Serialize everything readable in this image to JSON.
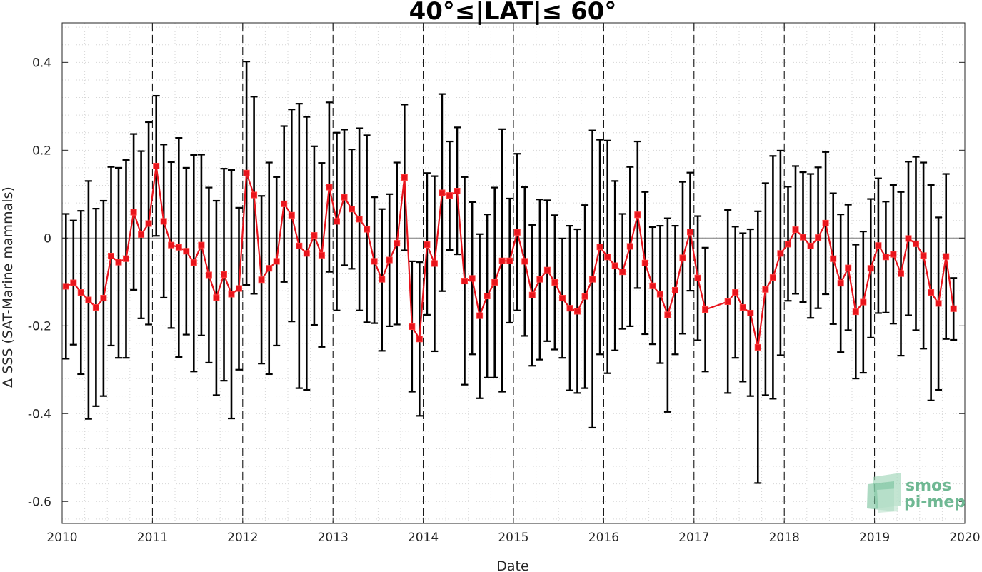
{
  "chart_data": {
    "type": "line",
    "title": "40°≤|LAT|≤ 60°",
    "xlabel": "Date",
    "ylabel": "Δ SSS (SAT-Marine mammals)",
    "xlim": [
      2010,
      2020
    ],
    "ylim": [
      -0.65,
      0.49
    ],
    "xticks": [
      "2010",
      "2011",
      "2012",
      "2013",
      "2014",
      "2015",
      "2016",
      "2017",
      "2018",
      "2019",
      "2020"
    ],
    "yticks": [
      0.4,
      0.2,
      0,
      -0.2,
      -0.4,
      -0.6
    ],
    "ytick_labels": [
      "0.4",
      "0.2",
      "0",
      "-0.2",
      "-0.4",
      "-0.6"
    ],
    "year_marker_lines": [
      2011,
      2012,
      2013,
      2014,
      2015,
      2016,
      2017,
      2018,
      2019
    ],
    "grid": true,
    "series": [
      {
        "color": "#e8141c",
        "errorbar_color": "#000000",
        "points": [
          {
            "x": 2010.042,
            "y": -0.11,
            "lo": -0.275,
            "hi": 0.055
          },
          {
            "x": 2010.125,
            "y": -0.102,
            "lo": -0.243,
            "hi": 0.04
          },
          {
            "x": 2010.208,
            "y": -0.124,
            "lo": -0.31,
            "hi": 0.062
          },
          {
            "x": 2010.292,
            "y": -0.141,
            "lo": -0.412,
            "hi": 0.13
          },
          {
            "x": 2010.375,
            "y": -0.158,
            "lo": -0.383,
            "hi": 0.067
          },
          {
            "x": 2010.458,
            "y": -0.137,
            "lo": -0.36,
            "hi": 0.085
          },
          {
            "x": 2010.542,
            "y": -0.041,
            "lo": -0.245,
            "hi": 0.162
          },
          {
            "x": 2010.625,
            "y": -0.055,
            "lo": -0.273,
            "hi": 0.16
          },
          {
            "x": 2010.708,
            "y": -0.047,
            "lo": -0.273,
            "hi": 0.178
          },
          {
            "x": 2010.792,
            "y": 0.059,
            "lo": -0.118,
            "hi": 0.237
          },
          {
            "x": 2010.875,
            "y": 0.008,
            "lo": -0.183,
            "hi": 0.198
          },
          {
            "x": 2010.958,
            "y": 0.033,
            "lo": -0.197,
            "hi": 0.264
          },
          {
            "x": 2011.042,
            "y": 0.164,
            "lo": 0.005,
            "hi": 0.324
          },
          {
            "x": 2011.125,
            "y": 0.038,
            "lo": -0.136,
            "hi": 0.213
          },
          {
            "x": 2011.208,
            "y": -0.016,
            "lo": -0.205,
            "hi": 0.173
          },
          {
            "x": 2011.292,
            "y": -0.021,
            "lo": -0.271,
            "hi": 0.228
          },
          {
            "x": 2011.375,
            "y": -0.03,
            "lo": -0.22,
            "hi": 0.16
          },
          {
            "x": 2011.458,
            "y": -0.056,
            "lo": -0.304,
            "hi": 0.189
          },
          {
            "x": 2011.542,
            "y": -0.016,
            "lo": -0.222,
            "hi": 0.19
          },
          {
            "x": 2011.625,
            "y": -0.084,
            "lo": -0.284,
            "hi": 0.115
          },
          {
            "x": 2011.708,
            "y": -0.136,
            "lo": -0.358,
            "hi": 0.085
          },
          {
            "x": 2011.792,
            "y": -0.083,
            "lo": -0.325,
            "hi": 0.158
          },
          {
            "x": 2011.875,
            "y": -0.128,
            "lo": -0.411,
            "hi": 0.155
          },
          {
            "x": 2011.958,
            "y": -0.115,
            "lo": -0.3,
            "hi": 0.069
          },
          {
            "x": 2012.042,
            "y": 0.148,
            "lo": -0.107,
            "hi": 0.402
          },
          {
            "x": 2012.125,
            "y": 0.098,
            "lo": -0.127,
            "hi": 0.322
          },
          {
            "x": 2012.208,
            "y": -0.095,
            "lo": -0.286,
            "hi": 0.096
          },
          {
            "x": 2012.292,
            "y": -0.069,
            "lo": -0.31,
            "hi": 0.172
          },
          {
            "x": 2012.375,
            "y": -0.053,
            "lo": -0.245,
            "hi": 0.139
          },
          {
            "x": 2012.458,
            "y": 0.078,
            "lo": -0.1,
            "hi": 0.255
          },
          {
            "x": 2012.542,
            "y": 0.052,
            "lo": -0.19,
            "hi": 0.293
          },
          {
            "x": 2012.625,
            "y": -0.018,
            "lo": -0.342,
            "hi": 0.306
          },
          {
            "x": 2012.708,
            "y": -0.035,
            "lo": -0.346,
            "hi": 0.276
          },
          {
            "x": 2012.792,
            "y": 0.006,
            "lo": -0.198,
            "hi": 0.209
          },
          {
            "x": 2012.875,
            "y": -0.039,
            "lo": -0.248,
            "hi": 0.171
          },
          {
            "x": 2012.958,
            "y": 0.116,
            "lo": -0.077,
            "hi": 0.309
          },
          {
            "x": 2013.042,
            "y": 0.038,
            "lo": -0.165,
            "hi": 0.24
          },
          {
            "x": 2013.125,
            "y": 0.093,
            "lo": -0.062,
            "hi": 0.247
          },
          {
            "x": 2013.208,
            "y": 0.066,
            "lo": -0.07,
            "hi": 0.202
          },
          {
            "x": 2013.292,
            "y": 0.043,
            "lo": -0.165,
            "hi": 0.25
          },
          {
            "x": 2013.375,
            "y": 0.02,
            "lo": -0.192,
            "hi": 0.234
          },
          {
            "x": 2013.458,
            "y": -0.053,
            "lo": -0.194,
            "hi": 0.093
          },
          {
            "x": 2013.542,
            "y": -0.094,
            "lo": -0.257,
            "hi": 0.066
          },
          {
            "x": 2013.625,
            "y": -0.05,
            "lo": -0.201,
            "hi": 0.1
          },
          {
            "x": 2013.708,
            "y": -0.012,
            "lo": -0.197,
            "hi": 0.172
          },
          {
            "x": 2013.792,
            "y": 0.138,
            "lo": -0.028,
            "hi": 0.304
          },
          {
            "x": 2013.875,
            "y": -0.202,
            "lo": -0.35,
            "hi": -0.053
          },
          {
            "x": 2013.958,
            "y": -0.23,
            "lo": -0.405,
            "hi": -0.055
          },
          {
            "x": 2014.042,
            "y": -0.015,
            "lo": -0.175,
            "hi": 0.148
          },
          {
            "x": 2014.125,
            "y": -0.058,
            "lo": -0.258,
            "hi": 0.141
          },
          {
            "x": 2014.208,
            "y": 0.103,
            "lo": -0.121,
            "hi": 0.328
          },
          {
            "x": 2014.292,
            "y": 0.097,
            "lo": -0.027,
            "hi": 0.22
          },
          {
            "x": 2014.375,
            "y": 0.107,
            "lo": -0.037,
            "hi": 0.252
          },
          {
            "x": 2014.458,
            "y": -0.098,
            "lo": -0.334,
            "hi": 0.139
          },
          {
            "x": 2014.542,
            "y": -0.092,
            "lo": -0.265,
            "hi": 0.082
          },
          {
            "x": 2014.625,
            "y": -0.177,
            "lo": -0.365,
            "hi": 0.009
          },
          {
            "x": 2014.708,
            "y": -0.132,
            "lo": -0.318,
            "hi": 0.054
          },
          {
            "x": 2014.792,
            "y": -0.101,
            "lo": -0.318,
            "hi": 0.115
          },
          {
            "x": 2014.875,
            "y": -0.052,
            "lo": -0.35,
            "hi": 0.248
          },
          {
            "x": 2014.958,
            "y": -0.052,
            "lo": -0.193,
            "hi": 0.09
          },
          {
            "x": 2015.042,
            "y": 0.013,
            "lo": -0.165,
            "hi": 0.192
          },
          {
            "x": 2015.125,
            "y": -0.053,
            "lo": -0.223,
            "hi": 0.116
          },
          {
            "x": 2015.208,
            "y": -0.13,
            "lo": -0.291,
            "hi": 0.03
          },
          {
            "x": 2015.292,
            "y": -0.094,
            "lo": -0.277,
            "hi": 0.088
          },
          {
            "x": 2015.375,
            "y": -0.073,
            "lo": -0.235,
            "hi": 0.086
          },
          {
            "x": 2015.458,
            "y": -0.101,
            "lo": -0.254,
            "hi": 0.052
          },
          {
            "x": 2015.542,
            "y": -0.137,
            "lo": -0.273,
            "hi": -0.001
          },
          {
            "x": 2015.625,
            "y": -0.16,
            "lo": -0.347,
            "hi": 0.028
          },
          {
            "x": 2015.708,
            "y": -0.167,
            "lo": -0.353,
            "hi": 0.02
          },
          {
            "x": 2015.792,
            "y": -0.133,
            "lo": -0.342,
            "hi": 0.075
          },
          {
            "x": 2015.875,
            "y": -0.094,
            "lo": -0.432,
            "hi": 0.245
          },
          {
            "x": 2015.958,
            "y": -0.02,
            "lo": -0.265,
            "hi": 0.224
          },
          {
            "x": 2016.042,
            "y": -0.043,
            "lo": -0.308,
            "hi": 0.222
          },
          {
            "x": 2016.125,
            "y": -0.063,
            "lo": -0.256,
            "hi": 0.13
          },
          {
            "x": 2016.208,
            "y": -0.077,
            "lo": -0.207,
            "hi": 0.055
          },
          {
            "x": 2016.292,
            "y": -0.019,
            "lo": -0.201,
            "hi": 0.162
          },
          {
            "x": 2016.375,
            "y": 0.053,
            "lo": -0.114,
            "hi": 0.22
          },
          {
            "x": 2016.458,
            "y": -0.057,
            "lo": -0.219,
            "hi": 0.105
          },
          {
            "x": 2016.542,
            "y": -0.109,
            "lo": -0.242,
            "hi": 0.025
          },
          {
            "x": 2016.625,
            "y": -0.128,
            "lo": -0.285,
            "hi": 0.028
          },
          {
            "x": 2016.708,
            "y": -0.175,
            "lo": -0.396,
            "hi": 0.045
          },
          {
            "x": 2016.792,
            "y": -0.119,
            "lo": -0.265,
            "hi": 0.028
          },
          {
            "x": 2016.875,
            "y": -0.045,
            "lo": -0.218,
            "hi": 0.128
          },
          {
            "x": 2016.958,
            "y": 0.014,
            "lo": -0.12,
            "hi": 0.149
          },
          {
            "x": 2017.042,
            "y": -0.091,
            "lo": -0.233,
            "hi": 0.05
          },
          {
            "x": 2017.125,
            "y": -0.163,
            "lo": -0.304,
            "hi": -0.022
          },
          {
            "x": 2017.375,
            "y": -0.145,
            "lo": -0.353,
            "hi": 0.064
          },
          {
            "x": 2017.458,
            "y": -0.124,
            "lo": -0.273,
            "hi": 0.026
          },
          {
            "x": 2017.542,
            "y": -0.158,
            "lo": -0.327,
            "hi": 0.011
          },
          {
            "x": 2017.625,
            "y": -0.171,
            "lo": -0.36,
            "hi": 0.02
          },
          {
            "x": 2017.708,
            "y": -0.249,
            "lo": -0.558,
            "hi": 0.061
          },
          {
            "x": 2017.792,
            "y": -0.117,
            "lo": -0.358,
            "hi": 0.125
          },
          {
            "x": 2017.875,
            "y": -0.09,
            "lo": -0.366,
            "hi": 0.187
          },
          {
            "x": 2017.958,
            "y": -0.035,
            "lo": -0.267,
            "hi": 0.199
          },
          {
            "x": 2018.042,
            "y": -0.014,
            "lo": -0.143,
            "hi": 0.117
          },
          {
            "x": 2018.125,
            "y": 0.019,
            "lo": -0.127,
            "hi": 0.164
          },
          {
            "x": 2018.208,
            "y": 0.002,
            "lo": -0.146,
            "hi": 0.15
          },
          {
            "x": 2018.292,
            "y": -0.018,
            "lo": -0.182,
            "hi": 0.146
          },
          {
            "x": 2018.375,
            "y": 0.001,
            "lo": -0.16,
            "hi": 0.161
          },
          {
            "x": 2018.458,
            "y": 0.034,
            "lo": -0.128,
            "hi": 0.196
          },
          {
            "x": 2018.542,
            "y": -0.047,
            "lo": -0.196,
            "hi": 0.102
          },
          {
            "x": 2018.625,
            "y": -0.103,
            "lo": -0.26,
            "hi": 0.054
          },
          {
            "x": 2018.708,
            "y": -0.068,
            "lo": -0.21,
            "hi": 0.076
          },
          {
            "x": 2018.792,
            "y": -0.168,
            "lo": -0.32,
            "hi": -0.015
          },
          {
            "x": 2018.875,
            "y": -0.146,
            "lo": -0.307,
            "hi": 0.015
          },
          {
            "x": 2018.958,
            "y": -0.069,
            "lo": -0.227,
            "hi": 0.089
          },
          {
            "x": 2019.042,
            "y": -0.017,
            "lo": -0.171,
            "hi": 0.136
          },
          {
            "x": 2019.125,
            "y": -0.043,
            "lo": -0.17,
            "hi": 0.083
          },
          {
            "x": 2019.208,
            "y": -0.037,
            "lo": -0.195,
            "hi": 0.121
          },
          {
            "x": 2019.292,
            "y": -0.081,
            "lo": -0.268,
            "hi": 0.105
          },
          {
            "x": 2019.375,
            "y": -0.001,
            "lo": -0.176,
            "hi": 0.174
          },
          {
            "x": 2019.458,
            "y": -0.013,
            "lo": -0.21,
            "hi": 0.185
          },
          {
            "x": 2019.542,
            "y": -0.04,
            "lo": -0.252,
            "hi": 0.172
          },
          {
            "x": 2019.625,
            "y": -0.124,
            "lo": -0.37,
            "hi": 0.121
          },
          {
            "x": 2019.708,
            "y": -0.149,
            "lo": -0.346,
            "hi": 0.047
          },
          {
            "x": 2019.792,
            "y": -0.042,
            "lo": -0.23,
            "hi": 0.146
          },
          {
            "x": 2019.875,
            "y": -0.161,
            "lo": -0.232,
            "hi": -0.091
          }
        ]
      }
    ]
  },
  "logo": {
    "line1": "smos",
    "line2": "pi-mep",
    "color": "#6fb893"
  }
}
